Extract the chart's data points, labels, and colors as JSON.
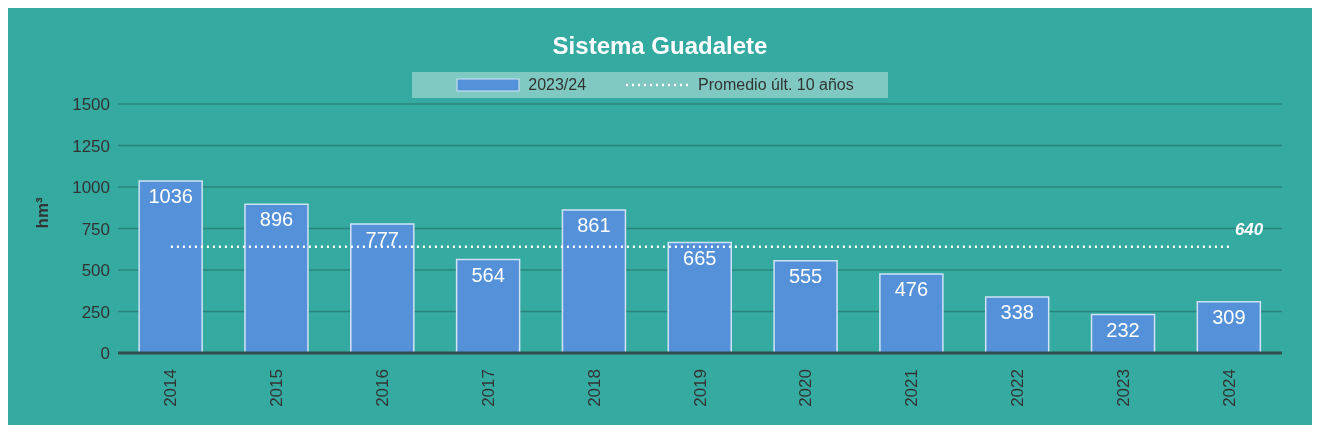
{
  "chart_data": {
    "type": "bar",
    "title": "Sistema Guadalete",
    "ylabel": "hm³",
    "categories": [
      "2014",
      "2015",
      "2016",
      "2017",
      "2018",
      "2019",
      "2020",
      "2021",
      "2022",
      "2023",
      "2024"
    ],
    "series": [
      {
        "name": "2023/24",
        "color": "#5591d8",
        "values": [
          1036,
          896,
          777,
          564,
          861,
          665,
          555,
          476,
          338,
          232,
          309
        ]
      },
      {
        "name": "Promedio últ. 10 años",
        "type": "line",
        "color": "#ffffff",
        "line_style": "dotted",
        "values": [
          640,
          640,
          640,
          640,
          640,
          640,
          640,
          640,
          640,
          640,
          640
        ],
        "value_labels": [
          null,
          null,
          null,
          null,
          null,
          null,
          null,
          null,
          null,
          null,
          "640"
        ]
      }
    ],
    "data_labels": true,
    "ylim": [
      0,
      1500
    ],
    "yticks": [
      0,
      250,
      500,
      750,
      1000,
      1250,
      1500
    ],
    "grid": "y",
    "legend": "top",
    "marker": "none"
  }
}
